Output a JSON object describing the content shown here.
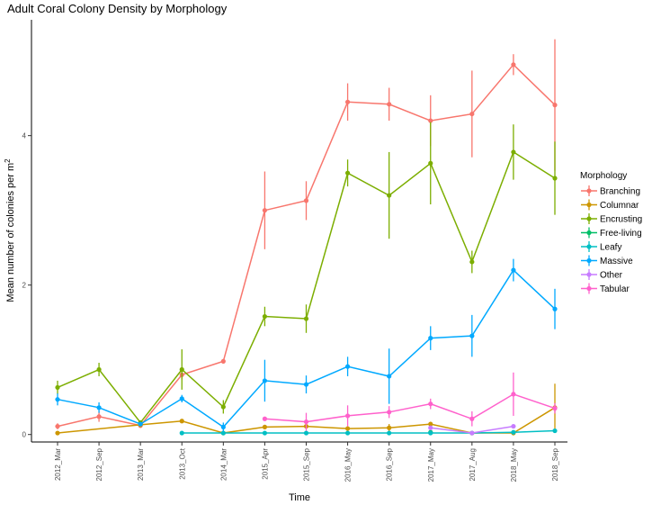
{
  "chart_data": {
    "type": "line",
    "title": "Adult Coral Colony Density by Morphology",
    "xlabel": "Time",
    "ylabel": "Mean number of colonies per m",
    "ylabel_superscript": "2",
    "categories": [
      "2012_Mar",
      "2012_Sep",
      "2013_Mar",
      "2013_Oct",
      "2014_Mar",
      "2015_Apr",
      "2015_Sep",
      "2016_May",
      "2016_Sep",
      "2017_May",
      "2017_Aug",
      "2018_May",
      "2018_Sep"
    ],
    "y_ticks": [
      0,
      2,
      4
    ],
    "ylim": [
      -0.1,
      5.55
    ],
    "grid": false,
    "legend": {
      "title": "Morphology",
      "position": "right"
    },
    "series": [
      {
        "name": "Branching",
        "color": "#F8766D",
        "values": [
          0.11,
          0.24,
          0.12,
          0.8,
          0.98,
          3.0,
          3.13,
          4.45,
          4.42,
          4.2,
          4.29,
          4.95,
          4.41
        ],
        "err": [
          0.04,
          0.07,
          0.03,
          0.06,
          0.03,
          0.52,
          0.26,
          0.25,
          0.22,
          0.34,
          0.58,
          0.14,
          0.88
        ]
      },
      {
        "name": "Columnar",
        "color": "#CD9600",
        "values": [
          0.02,
          null,
          0.13,
          0.18,
          0.02,
          0.1,
          0.11,
          0.08,
          0.09,
          0.14,
          0.02,
          0.02,
          0.36
        ],
        "err": [
          0,
          0,
          0.01,
          0.02,
          0,
          0.02,
          0.02,
          0.02,
          0.05,
          0.03,
          0,
          0,
          0.32
        ]
      },
      {
        "name": "Encrusting",
        "color": "#7CAE00",
        "values": [
          0.63,
          0.87,
          0.16,
          0.87,
          0.37,
          1.58,
          1.55,
          3.5,
          3.2,
          3.63,
          2.31,
          3.78,
          3.43
        ],
        "err": [
          0.09,
          0.09,
          0.03,
          0.27,
          0.09,
          0.13,
          0.19,
          0.18,
          0.58,
          0.55,
          0.15,
          0.37,
          0.49
        ]
      },
      {
        "name": "Free-living",
        "color": "#00BE67",
        "values": [
          null,
          null,
          null,
          null,
          null,
          null,
          null,
          null,
          null,
          0.03,
          null,
          null,
          null
        ],
        "err": [
          0,
          0,
          0,
          0,
          0,
          0,
          0,
          0,
          0,
          0.01,
          0,
          0,
          0
        ]
      },
      {
        "name": "Leafy",
        "color": "#00BFC4",
        "values": [
          null,
          null,
          null,
          0.02,
          0.02,
          0.02,
          0.02,
          0.02,
          0.02,
          0.02,
          0.02,
          0.03,
          0.05
        ],
        "err": [
          0,
          0,
          0,
          0,
          0,
          0,
          0,
          0,
          0,
          0,
          0,
          0,
          0.01
        ]
      },
      {
        "name": "Massive",
        "color": "#00A9FF",
        "values": [
          0.47,
          0.36,
          0.14,
          0.48,
          0.1,
          0.72,
          0.67,
          0.91,
          0.78,
          1.29,
          1.32,
          2.2,
          1.68
        ],
        "err": [
          0.08,
          0.07,
          0.03,
          0.05,
          0.06,
          0.28,
          0.12,
          0.13,
          0.37,
          0.16,
          0.28,
          0.15,
          0.27
        ]
      },
      {
        "name": "Other",
        "color": "#C77CFF",
        "values": [
          null,
          null,
          null,
          null,
          null,
          null,
          null,
          null,
          null,
          0.09,
          0.02,
          0.11,
          null
        ],
        "err": [
          0,
          0,
          0,
          0,
          0,
          0,
          0,
          0,
          0,
          0.02,
          0,
          0.02,
          0
        ]
      },
      {
        "name": "Tabular",
        "color": "#FF61CC",
        "values": [
          null,
          null,
          null,
          null,
          null,
          0.21,
          0.17,
          0.25,
          0.3,
          0.41,
          0.21,
          0.54,
          0.35
        ],
        "err": [
          0,
          0,
          0,
          0,
          0,
          0.02,
          0.12,
          0.14,
          0.08,
          0.07,
          0.1,
          0.29,
          0.07
        ]
      }
    ]
  }
}
